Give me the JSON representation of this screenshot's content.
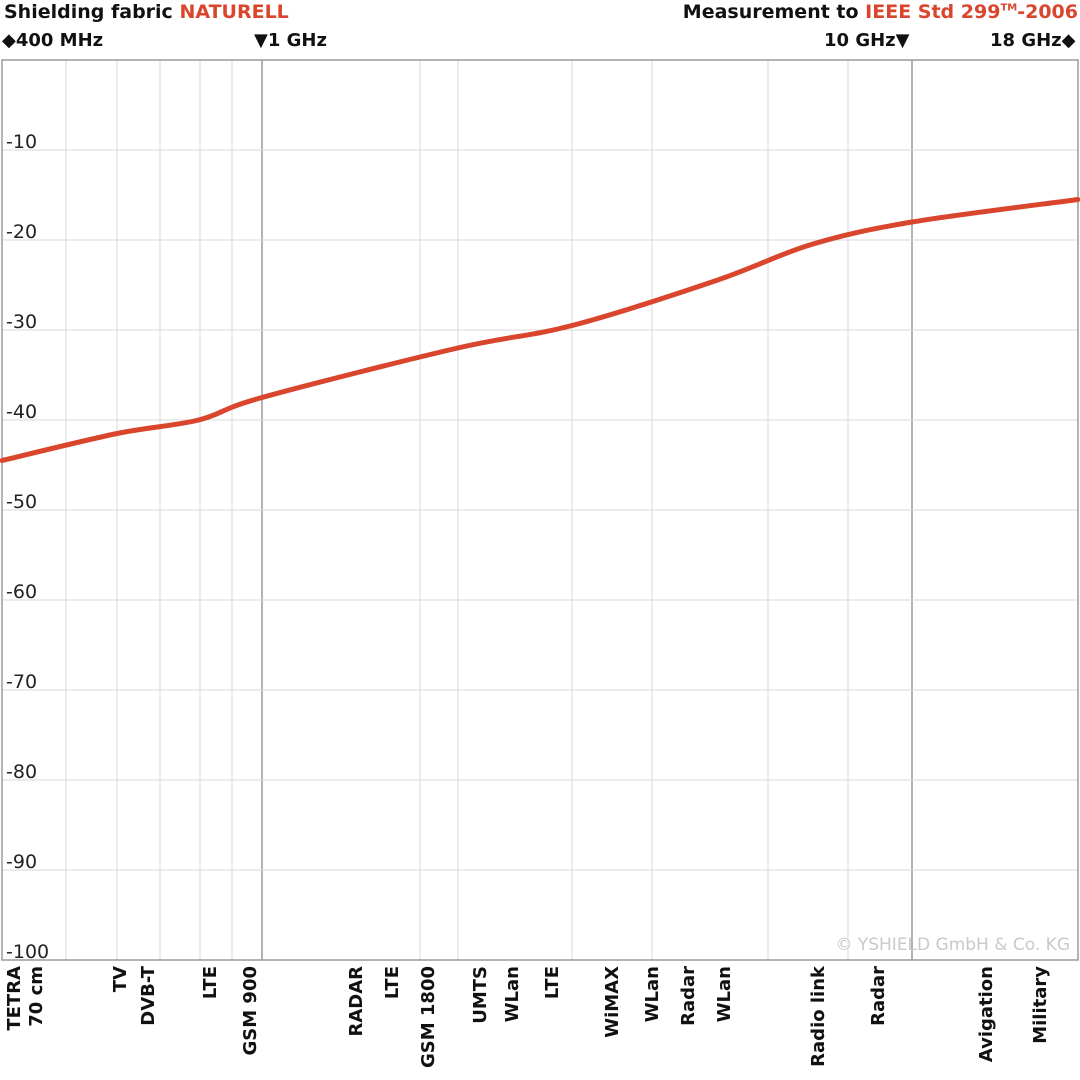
{
  "header": {
    "left_prefix": "Shielding fabric ",
    "left_accent": "NATURELL",
    "right_prefix": "Measurement to ",
    "right_accent": "IEEE Std 299",
    "right_tm": "TM",
    "right_suffix": "-2006"
  },
  "markers": {
    "start": "◆400 MHz",
    "one_ghz": "▼1 GHz",
    "ten_ghz": "10 GHz▼",
    "end": "18 GHz◆"
  },
  "colors": {
    "accent": "#d9462d",
    "curve": "#d9462d",
    "grid": "#d8d8d8",
    "major_grid": "#9a9a9a"
  },
  "copyright": "© YSHIELD GmbH & Co. KG",
  "chart_data": {
    "type": "line",
    "title": "Shielding fabric NATURELL",
    "subtitle": "Measurement to IEEE Std 299TM-2006",
    "xlabel": "",
    "ylabel": "",
    "x_scale": "log",
    "xlim": [
      "400 MHz",
      "18 GHz"
    ],
    "ylim": [
      -100,
      0
    ],
    "y_ticks": [
      -10,
      -20,
      -30,
      -40,
      -50,
      -60,
      -70,
      -80,
      -90,
      -100
    ],
    "grid": true,
    "x_markers": [
      "400 MHz",
      "1 GHz",
      "10 GHz",
      "18 GHz"
    ],
    "band_labels": [
      "TETRA\n70 cm",
      "TV",
      "DVB-T",
      "LTE",
      "GSM 900",
      "RADAR",
      "LTE",
      "GSM 1800",
      "UMTS",
      "WLan",
      "LTE",
      "WiMAX",
      "WLan",
      "Radar",
      "WLan",
      "Radio link",
      "Radar",
      "Avigation",
      "Military"
    ],
    "series": [
      {
        "values": [
          {
            "x": "400 MHz",
            "y": -44.5
          },
          {
            "x": "600 MHz",
            "y": -41.5
          },
          {
            "x": "800 MHz",
            "y": -40.0
          },
          {
            "x": "1 GHz",
            "y": -37.5
          },
          {
            "x": "2 GHz",
            "y": -32.0
          },
          {
            "x": "3 GHz",
            "y": -29.5
          },
          {
            "x": "5 GHz",
            "y": -24.5
          },
          {
            "x": "7 GHz",
            "y": -20.5
          },
          {
            "x": "10 GHz",
            "y": -18.0
          },
          {
            "x": "18 GHz",
            "y": -15.5
          }
        ]
      }
    ]
  }
}
